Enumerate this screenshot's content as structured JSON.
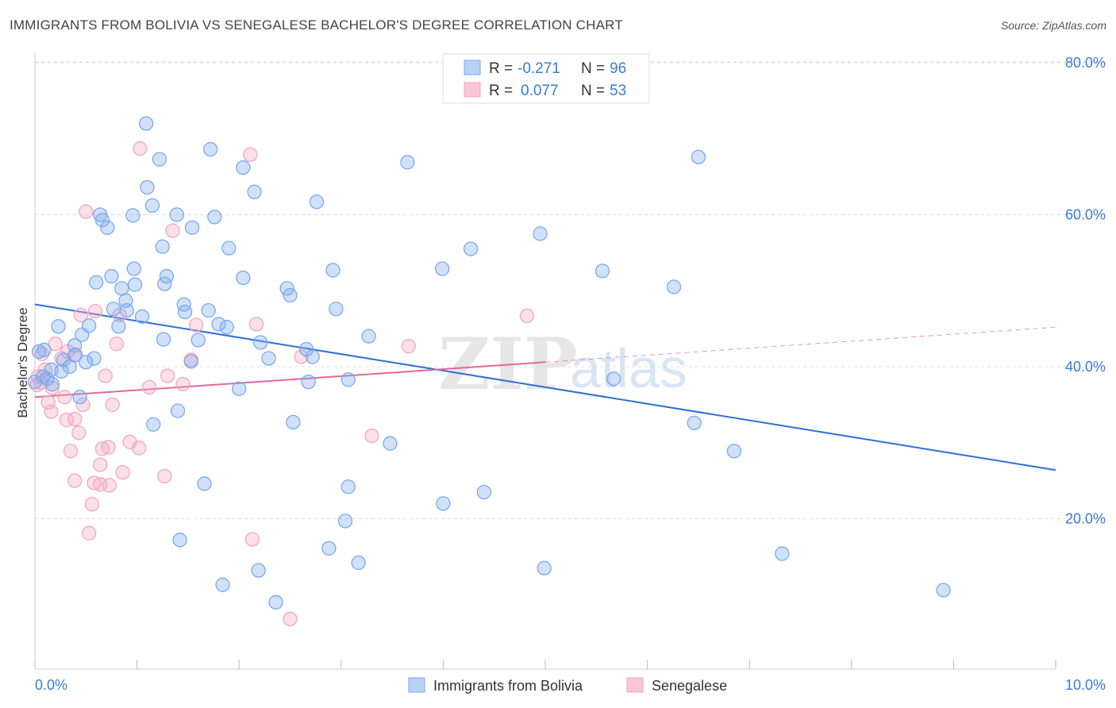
{
  "header": {
    "title": "IMMIGRANTS FROM BOLIVIA VS SENEGALESE BACHELOR'S DEGREE CORRELATION CHART",
    "source": "Source: ZipAtlas.com"
  },
  "watermark": {
    "zip": "ZIP",
    "atlas": "atlas"
  },
  "legend": {
    "r_label": "R =",
    "n_label": "N =",
    "series": [
      {
        "r": "-0.271",
        "n": "96"
      },
      {
        "r": "0.077",
        "n": "53"
      }
    ]
  },
  "chart_data": {
    "type": "scatter",
    "title": "IMMIGRANTS FROM BOLIVIA VS SENEGALESE BACHELOR'S DEGREE CORRELATION CHART",
    "xlabel": "",
    "ylabel": "Bachelor's Degree",
    "xlim": [
      0,
      10
    ],
    "ylim": [
      0,
      82
    ],
    "x_tick_labels": [
      "0.0%",
      "10.0%"
    ],
    "y_ticks": [
      20,
      40,
      60,
      80
    ],
    "y_tick_labels": [
      "20.0%",
      "40.0%",
      "60.0%",
      "80.0%"
    ],
    "legend_position": "top-center",
    "series": [
      {
        "name": "Immigrants from Bolivia",
        "color": "#7aaaf0",
        "line_color": "#2d6fd6",
        "trend": {
          "x0": 0,
          "y0": 48.2,
          "x1": 10,
          "y1": 26.4
        },
        "points": [
          [
            1.09,
            72.0
          ],
          [
            1.22,
            67.3
          ],
          [
            1.72,
            68.6
          ],
          [
            2.04,
            66.2
          ],
          [
            3.65,
            66.9
          ],
          [
            6.5,
            67.6
          ],
          [
            1.1,
            63.6
          ],
          [
            2.15,
            63.0
          ],
          [
            1.15,
            61.2
          ],
          [
            2.76,
            61.7
          ],
          [
            0.64,
            60.0
          ],
          [
            0.96,
            59.9
          ],
          [
            1.39,
            60.0
          ],
          [
            1.76,
            59.7
          ],
          [
            0.66,
            59.3
          ],
          [
            0.71,
            58.3
          ],
          [
            1.54,
            58.3
          ],
          [
            4.95,
            57.5
          ],
          [
            1.25,
            55.8
          ],
          [
            1.9,
            55.6
          ],
          [
            4.27,
            55.5
          ],
          [
            0.97,
            52.9
          ],
          [
            2.92,
            52.7
          ],
          [
            3.99,
            52.9
          ],
          [
            5.56,
            52.6
          ],
          [
            0.75,
            51.9
          ],
          [
            1.29,
            51.9
          ],
          [
            2.04,
            51.7
          ],
          [
            0.6,
            51.1
          ],
          [
            0.98,
            50.8
          ],
          [
            1.27,
            50.9
          ],
          [
            6.26,
            50.5
          ],
          [
            0.85,
            50.3
          ],
          [
            2.47,
            50.3
          ],
          [
            2.5,
            49.4
          ],
          [
            0.89,
            48.7
          ],
          [
            1.46,
            48.2
          ],
          [
            0.77,
            47.6
          ],
          [
            0.9,
            47.4
          ],
          [
            1.7,
            47.4
          ],
          [
            1.47,
            47.2
          ],
          [
            2.95,
            47.6
          ],
          [
            1.05,
            46.6
          ],
          [
            1.8,
            45.6
          ],
          [
            1.88,
            45.2
          ],
          [
            0.23,
            45.3
          ],
          [
            0.53,
            45.4
          ],
          [
            0.82,
            45.3
          ],
          [
            3.27,
            44.0
          ],
          [
            0.46,
            44.2
          ],
          [
            1.6,
            43.5
          ],
          [
            1.26,
            43.6
          ],
          [
            2.21,
            43.2
          ],
          [
            0.39,
            42.8
          ],
          [
            2.66,
            42.3
          ],
          [
            0.04,
            42.0
          ],
          [
            0.09,
            42.2
          ],
          [
            0.39,
            41.5
          ],
          [
            0.58,
            41.1
          ],
          [
            0.5,
            40.6
          ],
          [
            0.28,
            40.9
          ],
          [
            1.53,
            40.7
          ],
          [
            2.29,
            41.1
          ],
          [
            2.72,
            41.3
          ],
          [
            0.34,
            40.0
          ],
          [
            0.16,
            39.6
          ],
          [
            0.08,
            38.7
          ],
          [
            0.12,
            38.4
          ],
          [
            0.0,
            38.0
          ],
          [
            0.17,
            37.7
          ],
          [
            2.68,
            38.0
          ],
          [
            3.07,
            38.3
          ],
          [
            5.67,
            38.4
          ],
          [
            2.0,
            37.1
          ],
          [
            0.44,
            36.0
          ],
          [
            1.4,
            34.2
          ],
          [
            2.53,
            32.7
          ],
          [
            6.46,
            32.6
          ],
          [
            1.16,
            32.4
          ],
          [
            3.48,
            29.9
          ],
          [
            6.85,
            28.9
          ],
          [
            1.66,
            24.6
          ],
          [
            3.07,
            24.2
          ],
          [
            4.4,
            23.5
          ],
          [
            4.0,
            22.0
          ],
          [
            3.04,
            19.7
          ],
          [
            1.42,
            17.2
          ],
          [
            2.88,
            16.1
          ],
          [
            7.32,
            15.4
          ],
          [
            3.17,
            14.2
          ],
          [
            2.19,
            13.2
          ],
          [
            4.99,
            13.5
          ],
          [
            8.9,
            10.6
          ],
          [
            1.84,
            11.3
          ],
          [
            2.36,
            9.0
          ],
          [
            0.26,
            39.4
          ]
        ]
      },
      {
        "name": "Senegalese",
        "color": "#f4a7bf",
        "line_color": "#e2689a",
        "trend": {
          "x0": 0,
          "y0": 36.0,
          "x1": 5.0,
          "y1": 40.6
        },
        "trend_ext": {
          "x0": 5.0,
          "y0": 40.6,
          "x1": 10,
          "y1": 45.2
        },
        "points": [
          [
            1.03,
            68.7
          ],
          [
            2.11,
            67.9
          ],
          [
            0.5,
            60.4
          ],
          [
            1.35,
            57.9
          ],
          [
            0.59,
            47.3
          ],
          [
            0.45,
            46.8
          ],
          [
            4.82,
            46.7
          ],
          [
            0.83,
            46.8
          ],
          [
            1.58,
            45.5
          ],
          [
            2.17,
            45.6
          ],
          [
            0.2,
            43.0
          ],
          [
            0.32,
            42.0
          ],
          [
            0.8,
            43.0
          ],
          [
            3.66,
            42.7
          ],
          [
            0.07,
            41.7
          ],
          [
            0.4,
            41.6
          ],
          [
            0.26,
            41.1
          ],
          [
            1.53,
            40.9
          ],
          [
            2.61,
            41.3
          ],
          [
            0.1,
            39.6
          ],
          [
            0.69,
            38.8
          ],
          [
            1.3,
            38.8
          ],
          [
            0.02,
            37.6
          ],
          [
            1.45,
            37.7
          ],
          [
            1.12,
            37.3
          ],
          [
            0.17,
            37.2
          ],
          [
            0.29,
            36.0
          ],
          [
            0.47,
            35.0
          ],
          [
            0.13,
            35.3
          ],
          [
            0.76,
            35.0
          ],
          [
            0.16,
            34.1
          ],
          [
            0.31,
            33.0
          ],
          [
            0.39,
            33.1
          ],
          [
            0.43,
            31.3
          ],
          [
            3.3,
            30.9
          ],
          [
            0.93,
            30.1
          ],
          [
            0.72,
            29.4
          ],
          [
            0.66,
            29.2
          ],
          [
            0.35,
            28.9
          ],
          [
            1.02,
            29.3
          ],
          [
            0.64,
            27.1
          ],
          [
            0.86,
            26.1
          ],
          [
            1.27,
            25.6
          ],
          [
            0.39,
            25.0
          ],
          [
            0.58,
            24.7
          ],
          [
            0.73,
            24.4
          ],
          [
            0.64,
            24.5
          ],
          [
            0.56,
            21.9
          ],
          [
            0.53,
            18.1
          ],
          [
            2.13,
            17.3
          ],
          [
            2.5,
            6.8
          ],
          [
            0.03,
            38.7
          ],
          [
            0.06,
            37.9
          ]
        ]
      }
    ]
  }
}
